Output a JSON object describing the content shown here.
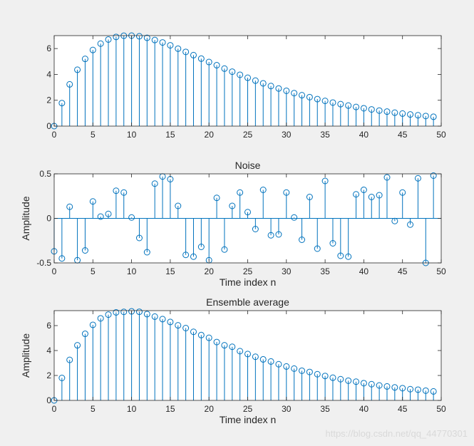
{
  "watermark": "https://blog.csdn.net/qq_44770301",
  "chart_data": [
    {
      "type": "stem",
      "title": "",
      "xlabel": "",
      "ylabel": "",
      "xlim": [
        0,
        50
      ],
      "ylim": [
        0,
        7
      ],
      "xticks": [
        0,
        5,
        10,
        15,
        20,
        25,
        30,
        35,
        40,
        45,
        50
      ],
      "yticks": [
        0,
        2,
        4,
        6
      ],
      "color": "#0072bd",
      "x": [
        0,
        1,
        2,
        3,
        4,
        5,
        6,
        7,
        8,
        9,
        10,
        11,
        12,
        13,
        14,
        15,
        16,
        17,
        18,
        19,
        20,
        21,
        22,
        23,
        24,
        25,
        26,
        27,
        28,
        29,
        30,
        31,
        32,
        33,
        34,
        35,
        36,
        37,
        38,
        39,
        40,
        41,
        42,
        43,
        44,
        45,
        46,
        47,
        48,
        49
      ],
      "values": [
        0,
        1.78,
        3.23,
        4.36,
        5.2,
        5.89,
        6.38,
        6.7,
        6.9,
        6.99,
        7.0,
        6.95,
        6.83,
        6.66,
        6.47,
        6.25,
        5.99,
        5.74,
        5.49,
        5.22,
        4.96,
        4.71,
        4.45,
        4.21,
        3.97,
        3.74,
        3.52,
        3.31,
        3.1,
        2.91,
        2.73,
        2.55,
        2.39,
        2.24,
        2.09,
        1.95,
        1.82,
        1.7,
        1.59,
        1.48,
        1.38,
        1.29,
        1.2,
        1.12,
        1.04,
        0.97,
        0.9,
        0.84,
        0.78,
        0.72
      ]
    },
    {
      "type": "stem",
      "title": "Noise",
      "xlabel": "Time index n",
      "ylabel": "Amplitude",
      "xlim": [
        0,
        50
      ],
      "ylim": [
        -0.5,
        0.5
      ],
      "xticks": [
        0,
        5,
        10,
        15,
        20,
        25,
        30,
        35,
        40,
        45,
        50
      ],
      "yticks": [
        -0.5,
        0,
        0.5
      ],
      "color": "#0072bd",
      "x": [
        0,
        1,
        2,
        3,
        4,
        5,
        6,
        7,
        8,
        9,
        10,
        11,
        12,
        13,
        14,
        15,
        16,
        17,
        18,
        19,
        20,
        21,
        22,
        23,
        24,
        25,
        26,
        27,
        28,
        29,
        30,
        31,
        32,
        33,
        34,
        35,
        36,
        37,
        38,
        39,
        40,
        41,
        42,
        43,
        44,
        45,
        46,
        47,
        48,
        49
      ],
      "values": [
        -0.37,
        -0.45,
        0.13,
        -0.47,
        -0.36,
        0.19,
        0.02,
        0.05,
        0.31,
        0.29,
        0.01,
        -0.22,
        -0.38,
        0.39,
        0.47,
        0.44,
        0.14,
        -0.41,
        -0.43,
        -0.32,
        -0.47,
        0.23,
        -0.35,
        0.14,
        0.29,
        0.07,
        -0.12,
        0.32,
        -0.19,
        -0.18,
        0.29,
        0.01,
        -0.24,
        0.24,
        -0.34,
        0.42,
        -0.28,
        -0.42,
        -0.43,
        0.27,
        0.32,
        0.24,
        0.26,
        0.46,
        -0.03,
        0.29,
        -0.07,
        0.45,
        -0.5,
        0.48
      ]
    },
    {
      "type": "stem",
      "title": "Ensemble average",
      "xlabel": "Time index n",
      "ylabel": "Amplitude",
      "xlim": [
        0,
        50
      ],
      "ylim": [
        0,
        7.2
      ],
      "xticks": [
        0,
        5,
        10,
        15,
        20,
        25,
        30,
        35,
        40,
        45,
        50
      ],
      "yticks": [
        0,
        2,
        4,
        6
      ],
      "color": "#0072bd",
      "x": [
        0,
        1,
        2,
        3,
        4,
        5,
        6,
        7,
        8,
        9,
        10,
        11,
        12,
        13,
        14,
        15,
        16,
        17,
        18,
        19,
        20,
        21,
        22,
        23,
        24,
        25,
        26,
        27,
        28,
        29,
        30,
        31,
        32,
        33,
        34,
        35,
        36,
        37,
        38,
        39,
        40,
        41,
        42,
        43,
        44,
        45,
        46,
        47,
        48,
        49
      ],
      "values": [
        0,
        1.8,
        3.25,
        4.42,
        5.34,
        6.06,
        6.58,
        6.88,
        7.06,
        7.1,
        7.14,
        7.11,
        6.92,
        6.72,
        6.52,
        6.29,
        6.02,
        5.8,
        5.5,
        5.24,
        5.02,
        4.68,
        4.42,
        4.3,
        3.95,
        3.72,
        3.5,
        3.29,
        3.12,
        2.9,
        2.72,
        2.55,
        2.38,
        2.28,
        2.1,
        1.96,
        1.82,
        1.7,
        1.58,
        1.5,
        1.38,
        1.3,
        1.2,
        1.12,
        1.04,
        0.98,
        0.9,
        0.86,
        0.78,
        0.72
      ]
    }
  ]
}
